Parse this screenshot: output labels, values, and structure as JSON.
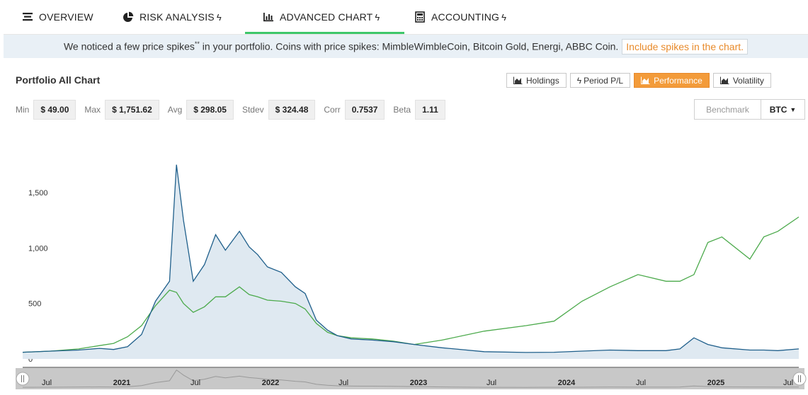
{
  "tabs": [
    {
      "label": "OVERVIEW",
      "icon": "list-icon",
      "bolt": false
    },
    {
      "label": "RISK ANALYSIS",
      "icon": "pie-chart-icon",
      "bolt": true
    },
    {
      "label": "ADVANCED CHART",
      "icon": "bar-chart-icon",
      "bolt": true,
      "active": true
    },
    {
      "label": "ACCOUNTING",
      "icon": "calculator-icon",
      "bolt": true
    }
  ],
  "notice": {
    "text_before": "We noticed a few price spikes",
    "superscript": "**",
    "text_after": " in your portfolio. Coins with price spikes: MimbleWimbleCoin, Bitcoin Gold, Energi, ABBC Coin.",
    "link": "Include spikes in the chart."
  },
  "chart_title": "Portfolio All Chart",
  "view_buttons": {
    "holdings": "Holdings",
    "period": "Period P/L",
    "performance": "Performance",
    "volatility": "Volatility"
  },
  "stats": {
    "min_label": "Min",
    "min": "$ 49.00",
    "max_label": "Max",
    "max": "$ 1,751.62",
    "avg_label": "Avg",
    "avg": "$ 298.05",
    "stdev_label": "Stdev",
    "stdev": "$ 324.48",
    "corr_label": "Corr",
    "corr": "0.7537",
    "beta_label": "Beta",
    "beta": "1.11"
  },
  "benchmark": {
    "label": "Benchmark",
    "selected": "BTC"
  },
  "colors": {
    "portfolio": "#1f5f8b",
    "benchmark": "#4caa4c",
    "fill": "#dfe9f1",
    "accent": "#f39b3a",
    "tab_active": "#3ec76a"
  },
  "chart_data": {
    "type": "line",
    "y_ticks": [
      "0",
      "500",
      "1,000",
      "1,500"
    ],
    "ylim": [
      0,
      1800
    ],
    "x_ticks": [
      "Jul",
      "2021",
      "Jul",
      "2022",
      "Jul",
      "2023",
      "Jul",
      "2024",
      "Jul",
      "2025",
      "Jul"
    ],
    "x": [
      2020.2,
      2020.4,
      2020.6,
      2020.75,
      2020.85,
      2020.95,
      2021.05,
      2021.15,
      2021.25,
      2021.3,
      2021.35,
      2021.42,
      2021.5,
      2021.58,
      2021.65,
      2021.75,
      2021.82,
      2021.88,
      2021.95,
      2022.05,
      2022.15,
      2022.22,
      2022.3,
      2022.38,
      2022.45,
      2022.55,
      2022.7,
      2022.85,
      2023.0,
      2023.2,
      2023.5,
      2023.8,
      2024.0,
      2024.2,
      2024.4,
      2024.6,
      2024.8,
      2024.9,
      2025.0,
      2025.1,
      2025.2,
      2025.4,
      2025.5,
      2025.6,
      2025.75
    ],
    "series": [
      {
        "values": [
          60,
          70,
          80,
          95,
          85,
          110,
          220,
          520,
          700,
          1751,
          1250,
          700,
          850,
          1120,
          980,
          1150,
          1010,
          940,
          830,
          780,
          650,
          590,
          350,
          260,
          210,
          180,
          170,
          155,
          130,
          100,
          65,
          58,
          60,
          70,
          80,
          75,
          75,
          90,
          190,
          130,
          100,
          80,
          80,
          75,
          90
        ]
      },
      {
        "values": [
          60,
          70,
          90,
          120,
          140,
          200,
          300,
          480,
          620,
          600,
          500,
          420,
          470,
          560,
          560,
          650,
          580,
          560,
          530,
          520,
          500,
          450,
          320,
          240,
          210,
          190,
          180,
          160,
          130,
          170,
          250,
          300,
          340,
          520,
          650,
          760,
          700,
          700,
          760,
          1050,
          1100,
          900,
          1100,
          1150,
          1280
        ]
      }
    ]
  }
}
